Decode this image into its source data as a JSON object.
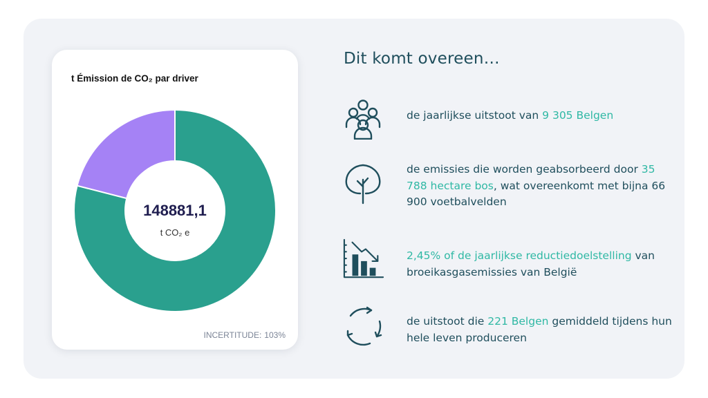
{
  "chart_card": {
    "title": "t Émission de CO₂ par driver",
    "total_value": "148881,1",
    "total_unit": "t CO₂ e",
    "uncertainty_label": "INCERTITUDE:",
    "uncertainty_value": "103%"
  },
  "chart_data": {
    "type": "pie",
    "values": [
      79,
      21
    ],
    "colors": [
      "#2aa08e",
      "#a582f5"
    ]
  },
  "equivalents": {
    "heading": "Dit komt overeen…",
    "items": [
      {
        "icon": "people-group-icon",
        "pre": "de jaarlijkse uitstoot van ",
        "highlight": "9 305 Belgen"
      },
      {
        "icon": "tree-icon",
        "pre": "de emissies die worden geabsorbeerd door ",
        "highlight": "35 788 hectare bos",
        "post": ", wat overeenkomt met bijna 66 900 voetbalvelden"
      },
      {
        "icon": "declining-bar-chart-icon",
        "highlight": "2,45% of de jaarlijkse reductiedoelstelling",
        "post": " van broeikasgasemissies van België"
      },
      {
        "icon": "cycle-arrows-icon",
        "pre": "de uitstoot die ",
        "highlight": "221 Belgen",
        "post": " gemiddeld tijdens hun hele leven produceren"
      }
    ]
  },
  "colors": {
    "accent": "#2fb8a4",
    "text": "#1f4e5c",
    "donut_green": "#2aa08e",
    "donut_purple": "#a582f5"
  }
}
